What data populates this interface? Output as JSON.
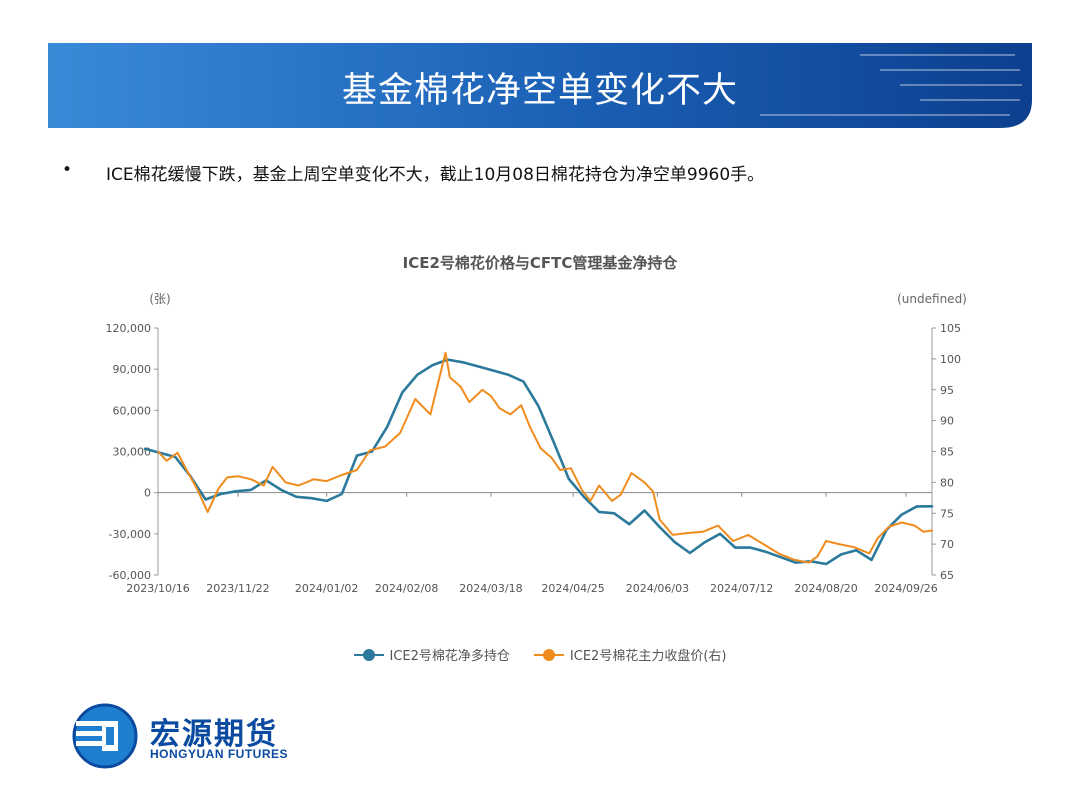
{
  "slide": {
    "title": "基金棉花净空单变化不大",
    "bullet": "ICE棉花缓慢下跌，基金上周空单变化不大，截止10月08日棉花持仓为净空单9960手。"
  },
  "colors": {
    "banner": "#1a5fb4",
    "banner_dark": "#0d3f8f",
    "series1": "#2b7a9b",
    "series2": "#f08c1e"
  },
  "logo": {
    "cn": "宏源期货",
    "en": "HONGYUAN FUTURES",
    "icon": "hongyuan-logo-icon"
  },
  "chart_data": {
    "type": "line",
    "title": "ICE2号棉花价格与CFTC管理基金净持仓",
    "ylabel_left": "(张)",
    "ylabel_right": "(undefined)",
    "ylim_left": [
      -60000,
      120000
    ],
    "ylim_right": [
      65,
      105
    ],
    "yticks_left": [
      -60000,
      -30000,
      0,
      30000,
      60000,
      90000,
      120000
    ],
    "yticks_left_labels": [
      "-60,000",
      "-30,000",
      "0",
      "30,000",
      "60,000",
      "90,000",
      "120,000"
    ],
    "yticks_right": [
      65,
      70,
      75,
      80,
      85,
      90,
      95,
      100,
      105
    ],
    "xlim": [
      "2023/10/16",
      "2024/10/08"
    ],
    "xticks": [
      "2023/10/16",
      "2023/11/22",
      "2024/01/02",
      "2024/02/08",
      "2024/03/18",
      "2024/04/25",
      "2024/06/03",
      "2024/07/12",
      "2024/08/20",
      "2024/09/26"
    ],
    "legend_position": "bottom",
    "grid": false,
    "series": [
      {
        "name": "ICE2号棉花净多持仓",
        "axis": "left",
        "points": [
          [
            "2023/10/10",
            32000
          ],
          [
            "2023/10/17",
            29000
          ],
          [
            "2023/10/24",
            26000
          ],
          [
            "2023/10/31",
            12000
          ],
          [
            "2023/11/07",
            -5000
          ],
          [
            "2023/11/14",
            -1000
          ],
          [
            "2023/11/21",
            1000
          ],
          [
            "2023/11/28",
            2000
          ],
          [
            "2023/12/05",
            9000
          ],
          [
            "2023/12/12",
            2000
          ],
          [
            "2023/12/19",
            -3000
          ],
          [
            "2023/12/26",
            -4000
          ],
          [
            "2024/01/02",
            -6000
          ],
          [
            "2024/01/09",
            -1000
          ],
          [
            "2024/01/16",
            27000
          ],
          [
            "2024/01/23",
            30000
          ],
          [
            "2024/01/30",
            48000
          ],
          [
            "2024/02/06",
            73000
          ],
          [
            "2024/02/13",
            86000
          ],
          [
            "2024/02/20",
            93000
          ],
          [
            "2024/02/27",
            97000
          ],
          [
            "2024/03/05",
            95000
          ],
          [
            "2024/03/12",
            92000
          ],
          [
            "2024/03/19",
            89000
          ],
          [
            "2024/03/26",
            86000
          ],
          [
            "2024/04/02",
            81000
          ],
          [
            "2024/04/09",
            63000
          ],
          [
            "2024/04/16",
            37000
          ],
          [
            "2024/04/23",
            10000
          ],
          [
            "2024/04/30",
            -3000
          ],
          [
            "2024/05/07",
            -14000
          ],
          [
            "2024/05/14",
            -15000
          ],
          [
            "2024/05/21",
            -23000
          ],
          [
            "2024/05/28",
            -13000
          ],
          [
            "2024/06/04",
            -25000
          ],
          [
            "2024/06/11",
            -36000
          ],
          [
            "2024/06/18",
            -44000
          ],
          [
            "2024/06/25",
            -36000
          ],
          [
            "2024/07/02",
            -30000
          ],
          [
            "2024/07/09",
            -40000
          ],
          [
            "2024/07/16",
            -40000
          ],
          [
            "2024/07/23",
            -43000
          ],
          [
            "2024/07/30",
            -47000
          ],
          [
            "2024/08/06",
            -51000
          ],
          [
            "2024/08/13",
            -50000
          ],
          [
            "2024/08/20",
            -52000
          ],
          [
            "2024/08/27",
            -45000
          ],
          [
            "2024/09/03",
            -42000
          ],
          [
            "2024/09/10",
            -49000
          ],
          [
            "2024/09/17",
            -27000
          ],
          [
            "2024/09/24",
            -16000
          ],
          [
            "2024/10/01",
            -10000
          ],
          [
            "2024/10/08",
            -9960
          ]
        ]
      },
      {
        "name": "ICE2号棉花主力收盘价(右)",
        "axis": "right",
        "points": [
          [
            "2023/10/16",
            85.0
          ],
          [
            "2023/10/20",
            83.5
          ],
          [
            "2023/10/25",
            84.8
          ],
          [
            "2023/10/30",
            81.5
          ],
          [
            "2023/11/03",
            79.0
          ],
          [
            "2023/11/08",
            75.2
          ],
          [
            "2023/11/13",
            79.0
          ],
          [
            "2023/11/17",
            80.8
          ],
          [
            "2023/11/22",
            81.0
          ],
          [
            "2023/11/28",
            80.5
          ],
          [
            "2023/12/04",
            79.5
          ],
          [
            "2023/12/08",
            82.5
          ],
          [
            "2023/12/14",
            80.0
          ],
          [
            "2023/12/20",
            79.5
          ],
          [
            "2023/12/27",
            80.5
          ],
          [
            "2024/01/02",
            80.2
          ],
          [
            "2024/01/09",
            81.2
          ],
          [
            "2024/01/16",
            82.0
          ],
          [
            "2024/01/22",
            85.2
          ],
          [
            "2024/01/29",
            85.8
          ],
          [
            "2024/02/05",
            88.0
          ],
          [
            "2024/02/12",
            93.5
          ],
          [
            "2024/02/19",
            91.0
          ],
          [
            "2024/02/26",
            101.0
          ],
          [
            "2024/02/28",
            97.0
          ],
          [
            "2024/03/04",
            95.5
          ],
          [
            "2024/03/08",
            93.0
          ],
          [
            "2024/03/14",
            95.0
          ],
          [
            "2024/03/18",
            94.0
          ],
          [
            "2024/03/22",
            92.0
          ],
          [
            "2024/03/27",
            91.0
          ],
          [
            "2024/04/01",
            92.5
          ],
          [
            "2024/04/05",
            89.0
          ],
          [
            "2024/04/10",
            85.5
          ],
          [
            "2024/04/15",
            84.0
          ],
          [
            "2024/04/19",
            82.0
          ],
          [
            "2024/04/24",
            82.3
          ],
          [
            "2024/04/29",
            78.8
          ],
          [
            "2024/05/03",
            77.0
          ],
          [
            "2024/05/07",
            79.5
          ],
          [
            "2024/05/13",
            77.0
          ],
          [
            "2024/05/17",
            78.0
          ],
          [
            "2024/05/22",
            81.5
          ],
          [
            "2024/05/28",
            80.0
          ],
          [
            "2024/06/01",
            78.5
          ],
          [
            "2024/06/04",
            74.0
          ],
          [
            "2024/06/10",
            71.5
          ],
          [
            "2024/06/17",
            71.8
          ],
          [
            "2024/06/24",
            72.0
          ],
          [
            "2024/07/01",
            73.0
          ],
          [
            "2024/07/08",
            70.5
          ],
          [
            "2024/07/15",
            71.5
          ],
          [
            "2024/07/22",
            70.0
          ],
          [
            "2024/07/29",
            68.5
          ],
          [
            "2024/08/05",
            67.5
          ],
          [
            "2024/08/12",
            67.0
          ],
          [
            "2024/08/16",
            68.0
          ],
          [
            "2024/08/20",
            70.5
          ],
          [
            "2024/08/26",
            70.0
          ],
          [
            "2024/09/02",
            69.5
          ],
          [
            "2024/09/09",
            68.5
          ],
          [
            "2024/09/13",
            71.0
          ],
          [
            "2024/09/18",
            72.8
          ],
          [
            "2024/09/24",
            73.5
          ],
          [
            "2024/09/30",
            73.0
          ],
          [
            "2024/10/04",
            72.0
          ],
          [
            "2024/10/08",
            72.2
          ]
        ]
      }
    ]
  }
}
